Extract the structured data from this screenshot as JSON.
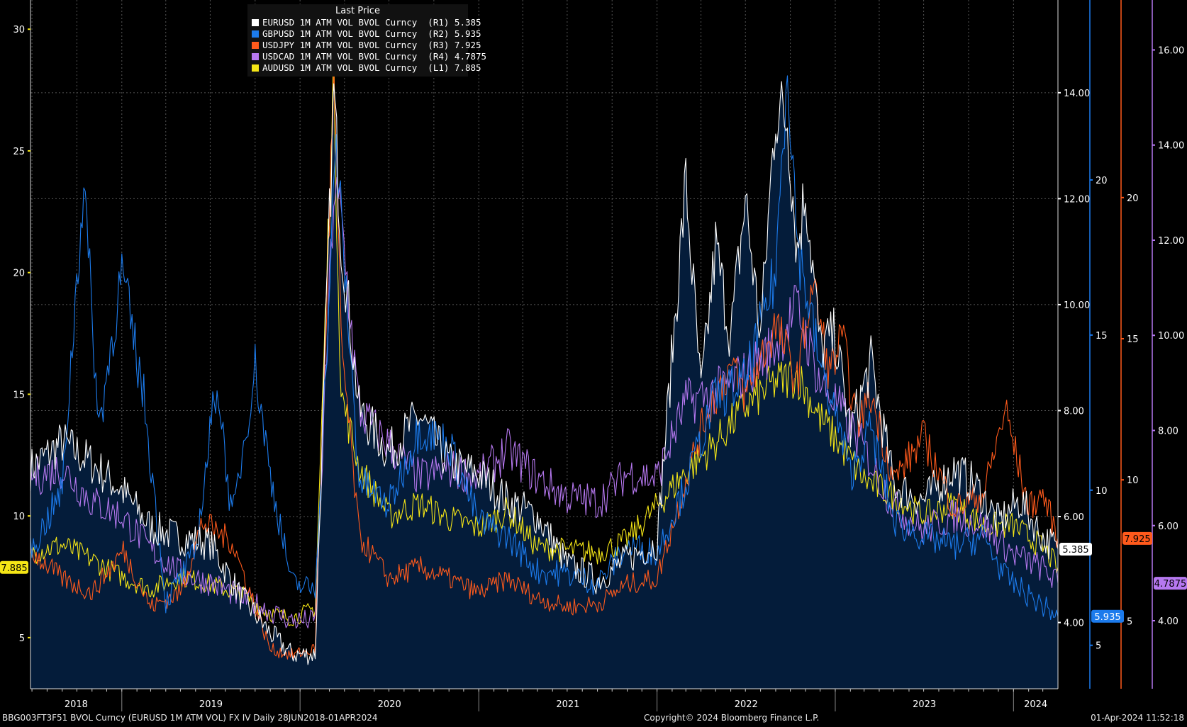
{
  "chart_data": {
    "type": "line",
    "title": "Last Price",
    "x_range": [
      "2018-06-28",
      "2024-04-01"
    ],
    "x_tick_labels": [
      "2018",
      "2019",
      "2020",
      "2021",
      "2022",
      "2023",
      "2024"
    ],
    "grid": true,
    "legend_position": "top-left",
    "axes": {
      "L1": {
        "side": "left",
        "color": "#f5e616",
        "ticks": [
          5,
          10,
          15,
          20,
          25,
          30
        ],
        "tick_labels": [
          "5",
          "10",
          "15",
          "20",
          "25",
          "30"
        ],
        "range": [
          2.9,
          31.2
        ]
      },
      "R1": {
        "side": "right",
        "color": "#ffffff",
        "ticks": [
          4,
          6,
          8,
          10,
          12,
          14
        ],
        "tick_labels": [
          "4.00",
          "6.00",
          "8.00",
          "10.00",
          "12.00",
          "14.00"
        ],
        "range": [
          2.75,
          15.75
        ]
      },
      "R2": {
        "side": "right",
        "color": "#1c7bec",
        "ticks": [
          5,
          10,
          15,
          20
        ],
        "tick_labels": [
          "5",
          "10",
          "15",
          "20"
        ],
        "range": [
          3.6,
          25.8
        ]
      },
      "R3": {
        "side": "right",
        "color": "#ff5a1c",
        "ticks": [
          5,
          10,
          15,
          20
        ],
        "tick_labels": [
          "5",
          "10",
          "15",
          "20"
        ],
        "range": [
          2.6,
          27.0
        ]
      },
      "R4": {
        "side": "right",
        "color": "#b678f0",
        "ticks": [
          4,
          6,
          8,
          10,
          12,
          14,
          16
        ],
        "tick_labels": [
          "4.00",
          "6.00",
          "8.00",
          "10.00",
          "12.00",
          "14.00",
          "16.00"
        ],
        "range": [
          2.57,
          17.05
        ]
      }
    },
    "series": [
      {
        "name": "EURUSD 1M ATM VOL BVOL Curncy",
        "axis": "R1",
        "color": "#ffffff",
        "last": "5.385",
        "points": [
          [
            "2018-06-28",
            6.9
          ],
          [
            "2018-09-01",
            7.4
          ],
          [
            "2018-11-01",
            7.0
          ],
          [
            "2019-01-01",
            6.5
          ],
          [
            "2019-03-01",
            5.8
          ],
          [
            "2019-05-01",
            5.6
          ],
          [
            "2019-07-01",
            5.5
          ],
          [
            "2019-09-01",
            4.5
          ],
          [
            "2019-11-01",
            3.8
          ],
          [
            "2019-12-15",
            3.4
          ],
          [
            "2020-02-01",
            3.4
          ],
          [
            "2020-03-10",
            14.0
          ],
          [
            "2020-03-25",
            11.3
          ],
          [
            "2020-05-01",
            8.0
          ],
          [
            "2020-07-01",
            7.2
          ],
          [
            "2020-09-01",
            7.9
          ],
          [
            "2020-11-01",
            7.0
          ],
          [
            "2021-01-01",
            6.8
          ],
          [
            "2021-03-01",
            6.3
          ],
          [
            "2021-05-01",
            6.0
          ],
          [
            "2021-07-01",
            5.1
          ],
          [
            "2021-09-01",
            4.8
          ],
          [
            "2021-11-01",
            5.2
          ],
          [
            "2022-01-01",
            5.5
          ],
          [
            "2022-03-01",
            12.3
          ],
          [
            "2022-04-01",
            8.3
          ],
          [
            "2022-05-01",
            11.1
          ],
          [
            "2022-06-01",
            9.4
          ],
          [
            "2022-07-01",
            12.0
          ],
          [
            "2022-08-01",
            9.4
          ],
          [
            "2022-09-01",
            13.7
          ],
          [
            "2022-09-25",
            13.5
          ],
          [
            "2022-10-15",
            11.0
          ],
          [
            "2022-11-01",
            12.2
          ],
          [
            "2022-12-01",
            9.2
          ],
          [
            "2023-01-01",
            9.4
          ],
          [
            "2023-02-01",
            7.6
          ],
          [
            "2023-03-15",
            8.9
          ],
          [
            "2023-05-01",
            6.6
          ],
          [
            "2023-07-01",
            6.3
          ],
          [
            "2023-09-01",
            6.9
          ],
          [
            "2023-10-15",
            6.6
          ],
          [
            "2023-12-01",
            5.9
          ],
          [
            "2024-01-15",
            6.3
          ],
          [
            "2024-03-01",
            5.6
          ],
          [
            "2024-04-01",
            5.385
          ]
        ]
      },
      {
        "name": "GBPUSD 1M ATM VOL BVOL Curncy",
        "axis": "R2",
        "color": "#1c7bec",
        "last": "5.935",
        "points": [
          [
            "2018-06-28",
            8.0
          ],
          [
            "2018-09-01",
            10.0
          ],
          [
            "2018-10-15",
            20.0
          ],
          [
            "2018-11-15",
            12.0
          ],
          [
            "2019-01-01",
            17.0
          ],
          [
            "2019-02-15",
            13.0
          ],
          [
            "2019-04-01",
            6.4
          ],
          [
            "2019-06-01",
            8.0
          ],
          [
            "2019-07-15",
            13.6
          ],
          [
            "2019-08-15",
            9.0
          ],
          [
            "2019-10-01",
            14.0
          ],
          [
            "2019-11-01",
            10.5
          ],
          [
            "2019-12-15",
            7.0
          ],
          [
            "2020-02-01",
            6.8
          ],
          [
            "2020-03-15",
            21.0
          ],
          [
            "2020-05-01",
            10.3
          ],
          [
            "2020-07-01",
            9.5
          ],
          [
            "2020-09-01",
            12.0
          ],
          [
            "2020-11-01",
            11.5
          ],
          [
            "2021-01-01",
            9.0
          ],
          [
            "2021-03-01",
            8.5
          ],
          [
            "2021-05-01",
            7.4
          ],
          [
            "2021-07-01",
            7.3
          ],
          [
            "2021-09-01",
            7.0
          ],
          [
            "2021-11-01",
            8.2
          ],
          [
            "2022-01-01",
            8.0
          ],
          [
            "2022-03-01",
            10.2
          ],
          [
            "2022-05-01",
            13.0
          ],
          [
            "2022-07-01",
            13.5
          ],
          [
            "2022-09-01",
            17.0
          ],
          [
            "2022-09-25",
            24.0
          ],
          [
            "2022-10-15",
            18.0
          ],
          [
            "2022-12-01",
            14.0
          ],
          [
            "2023-01-01",
            12.5
          ],
          [
            "2023-02-01",
            10.5
          ],
          [
            "2023-03-15",
            12.0
          ],
          [
            "2023-05-01",
            9.0
          ],
          [
            "2023-07-01",
            8.5
          ],
          [
            "2023-09-01",
            8.2
          ],
          [
            "2023-11-01",
            8.5
          ],
          [
            "2023-12-15",
            7.2
          ],
          [
            "2024-02-01",
            6.6
          ],
          [
            "2024-04-01",
            5.935
          ]
        ]
      },
      {
        "name": "USDJPY 1M ATM VOL BVOL Curncy",
        "axis": "R3",
        "color": "#ff5a1c",
        "last": "7.925",
        "points": [
          [
            "2018-06-28",
            7.5
          ],
          [
            "2018-09-01",
            6.5
          ],
          [
            "2018-11-01",
            6.0
          ],
          [
            "2019-01-04",
            7.5
          ],
          [
            "2019-03-01",
            5.5
          ],
          [
            "2019-05-01",
            6.0
          ],
          [
            "2019-06-15",
            8.5
          ],
          [
            "2019-08-15",
            7.8
          ],
          [
            "2019-11-01",
            4.0
          ],
          [
            "2019-12-15",
            3.8
          ],
          [
            "2020-02-01",
            4.0
          ],
          [
            "2020-03-10",
            24.0
          ],
          [
            "2020-03-25",
            15.0
          ],
          [
            "2020-05-01",
            8.0
          ],
          [
            "2020-07-01",
            6.5
          ],
          [
            "2020-09-01",
            6.9
          ],
          [
            "2020-11-01",
            6.5
          ],
          [
            "2021-01-01",
            6.0
          ],
          [
            "2021-03-01",
            6.5
          ],
          [
            "2021-05-01",
            5.8
          ],
          [
            "2021-07-01",
            5.5
          ],
          [
            "2021-09-01",
            5.6
          ],
          [
            "2021-11-01",
            6.3
          ],
          [
            "2022-01-01",
            6.5
          ],
          [
            "2022-03-01",
            10.0
          ],
          [
            "2022-04-15",
            12.5
          ],
          [
            "2022-06-01",
            14.0
          ],
          [
            "2022-07-01",
            13.0
          ],
          [
            "2022-09-01",
            15.5
          ],
          [
            "2022-10-15",
            13.5
          ],
          [
            "2022-11-15",
            17.0
          ],
          [
            "2022-12-20",
            13.8
          ],
          [
            "2023-01-15",
            15.0
          ],
          [
            "2023-02-15",
            12.0
          ],
          [
            "2023-03-15",
            13.0
          ],
          [
            "2023-05-01",
            10.0
          ],
          [
            "2023-07-01",
            11.5
          ],
          [
            "2023-09-01",
            9.0
          ],
          [
            "2023-11-01",
            9.5
          ],
          [
            "2023-12-15",
            12.5
          ],
          [
            "2024-02-01",
            9.0
          ],
          [
            "2024-03-01",
            9.5
          ],
          [
            "2024-04-01",
            7.925
          ]
        ]
      },
      {
        "name": "USDCAD 1M ATM VOL BVOL Curncy",
        "axis": "R4",
        "color": "#b678f0",
        "last": "4.7875",
        "points": [
          [
            "2018-06-28",
            7.0
          ],
          [
            "2018-09-01",
            7.2
          ],
          [
            "2018-11-01",
            6.5
          ],
          [
            "2019-01-01",
            6.2
          ],
          [
            "2019-03-01",
            5.5
          ],
          [
            "2019-05-01",
            5.0
          ],
          [
            "2019-07-01",
            4.8
          ],
          [
            "2019-09-01",
            4.5
          ],
          [
            "2019-11-01",
            4.2
          ],
          [
            "2019-12-15",
            4.0
          ],
          [
            "2020-02-01",
            4.0
          ],
          [
            "2020-03-10",
            13.0
          ],
          [
            "2020-03-25",
            12.5
          ],
          [
            "2020-05-01",
            8.4
          ],
          [
            "2020-07-01",
            7.7
          ],
          [
            "2020-09-01",
            7.0
          ],
          [
            "2020-11-01",
            7.2
          ],
          [
            "2021-01-01",
            7.0
          ],
          [
            "2021-03-01",
            7.6
          ],
          [
            "2021-05-01",
            7.0
          ],
          [
            "2021-07-01",
            6.6
          ],
          [
            "2021-09-01",
            6.5
          ],
          [
            "2021-11-01",
            7.1
          ],
          [
            "2022-01-01",
            7.0
          ],
          [
            "2022-03-01",
            8.6
          ],
          [
            "2022-05-01",
            8.8
          ],
          [
            "2022-07-01",
            9.2
          ],
          [
            "2022-09-01",
            9.8
          ],
          [
            "2022-10-15",
            10.6
          ],
          [
            "2022-12-01",
            9.0
          ],
          [
            "2023-01-01",
            8.6
          ],
          [
            "2023-03-01",
            7.6
          ],
          [
            "2023-05-01",
            6.4
          ],
          [
            "2023-07-01",
            5.9
          ],
          [
            "2023-09-01",
            6.2
          ],
          [
            "2023-11-01",
            6.0
          ],
          [
            "2024-01-01",
            5.4
          ],
          [
            "2024-03-01",
            5.1
          ],
          [
            "2024-04-01",
            4.7875
          ]
        ]
      },
      {
        "name": "AUDUSD 1M ATM VOL BVOL Curncy",
        "axis": "L1",
        "color": "#f5e616",
        "last": "7.885",
        "points": [
          [
            "2018-06-28",
            8.5
          ],
          [
            "2018-09-01",
            8.8
          ],
          [
            "2018-11-01",
            8.2
          ],
          [
            "2019-01-01",
            7.5
          ],
          [
            "2019-03-01",
            7.0
          ],
          [
            "2019-05-01",
            7.5
          ],
          [
            "2019-07-01",
            7.2
          ],
          [
            "2019-09-01",
            6.8
          ],
          [
            "2019-11-01",
            6.0
          ],
          [
            "2019-12-15",
            5.8
          ],
          [
            "2020-02-01",
            6.2
          ],
          [
            "2020-03-10",
            28.0
          ],
          [
            "2020-03-25",
            15.0
          ],
          [
            "2020-05-01",
            12.0
          ],
          [
            "2020-07-01",
            10.0
          ],
          [
            "2020-09-01",
            10.5
          ],
          [
            "2020-11-01",
            9.9
          ],
          [
            "2021-01-01",
            9.5
          ],
          [
            "2021-03-01",
            10.2
          ],
          [
            "2021-05-01",
            8.7
          ],
          [
            "2021-07-01",
            8.6
          ],
          [
            "2021-09-01",
            8.5
          ],
          [
            "2021-11-01",
            9.0
          ],
          [
            "2022-01-01",
            10.4
          ],
          [
            "2022-03-01",
            11.8
          ],
          [
            "2022-05-01",
            13.0
          ],
          [
            "2022-07-01",
            14.5
          ],
          [
            "2022-09-01",
            15.5
          ],
          [
            "2022-10-15",
            15.8
          ],
          [
            "2022-12-01",
            14.0
          ],
          [
            "2023-01-01",
            13.2
          ],
          [
            "2023-03-01",
            11.5
          ],
          [
            "2023-05-01",
            10.8
          ],
          [
            "2023-07-01",
            10.0
          ],
          [
            "2023-09-01",
            10.5
          ],
          [
            "2023-11-01",
            9.6
          ],
          [
            "2024-01-01",
            9.6
          ],
          [
            "2024-03-01",
            8.7
          ],
          [
            "2024-04-01",
            7.885
          ]
        ]
      }
    ]
  },
  "legend": {
    "header": "Last Price",
    "rows": [
      {
        "label": "EURUSD 1M ATM VOL BVOL Curncy  (R1) 5.385",
        "color": "#ffffff"
      },
      {
        "label": "GBPUSD 1M ATM VOL BVOL Curncy  (R2) 5.935",
        "color": "#1c7bec"
      },
      {
        "label": "USDJPY 1M ATM VOL BVOL Curncy  (R3) 7.925",
        "color": "#ff5a1c"
      },
      {
        "label": "USDCAD 1M ATM VOL BVOL Curncy  (R4) 4.7875",
        "color": "#b678f0"
      },
      {
        "label": "AUDUSD 1M ATM VOL BVOL Curncy  (L1) 7.885",
        "color": "#f5e616"
      }
    ]
  },
  "footer": {
    "left": "BBG003FT3F51 BVOL Curncy (EURUSD 1M ATM VOL) FX IV  Daily 28JUN2018-01APR2024",
    "center": "Copyright© 2024 Bloomberg Finance L.P.",
    "right": "01-Apr-2024 11:52:18"
  },
  "colors": {
    "background": "#000000",
    "area_fill": "#041c3a",
    "grid": "#5a5a5a"
  }
}
